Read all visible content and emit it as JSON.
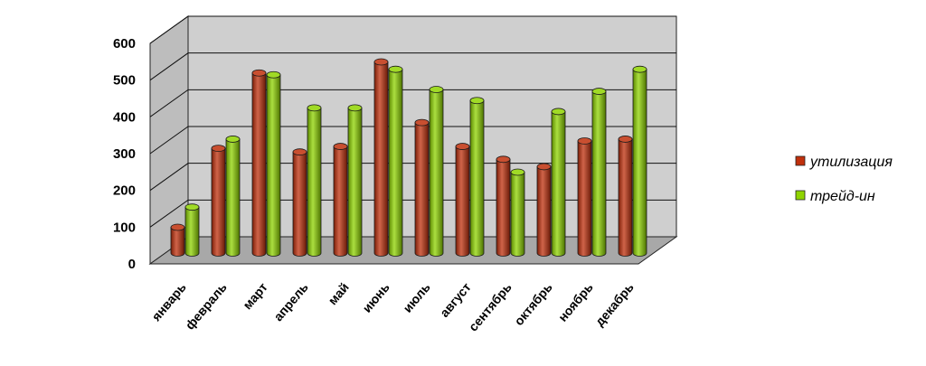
{
  "chart_data": {
    "type": "bar",
    "title": "",
    "xlabel": "",
    "ylabel": "",
    "ylim": [
      0,
      600
    ],
    "yticks": [
      0,
      100,
      200,
      300,
      400,
      500,
      600
    ],
    "grid": true,
    "legend_position": "right",
    "categories": [
      "январь",
      "февраль",
      "март",
      "апрель",
      "май",
      "июнь",
      "июль",
      "август",
      "сентябрь",
      "октябрь",
      "ноябрь",
      "декабрь"
    ],
    "series": [
      {
        "name": "утилизация",
        "color": "#c0300c",
        "values": [
          70,
          285,
          490,
          275,
          290,
          520,
          355,
          290,
          255,
          235,
          305,
          310
        ]
      },
      {
        "name": "трейд-ин",
        "color": "#8fd400",
        "values": [
          125,
          310,
          485,
          395,
          395,
          500,
          445,
          415,
          220,
          385,
          440,
          500
        ]
      }
    ]
  }
}
